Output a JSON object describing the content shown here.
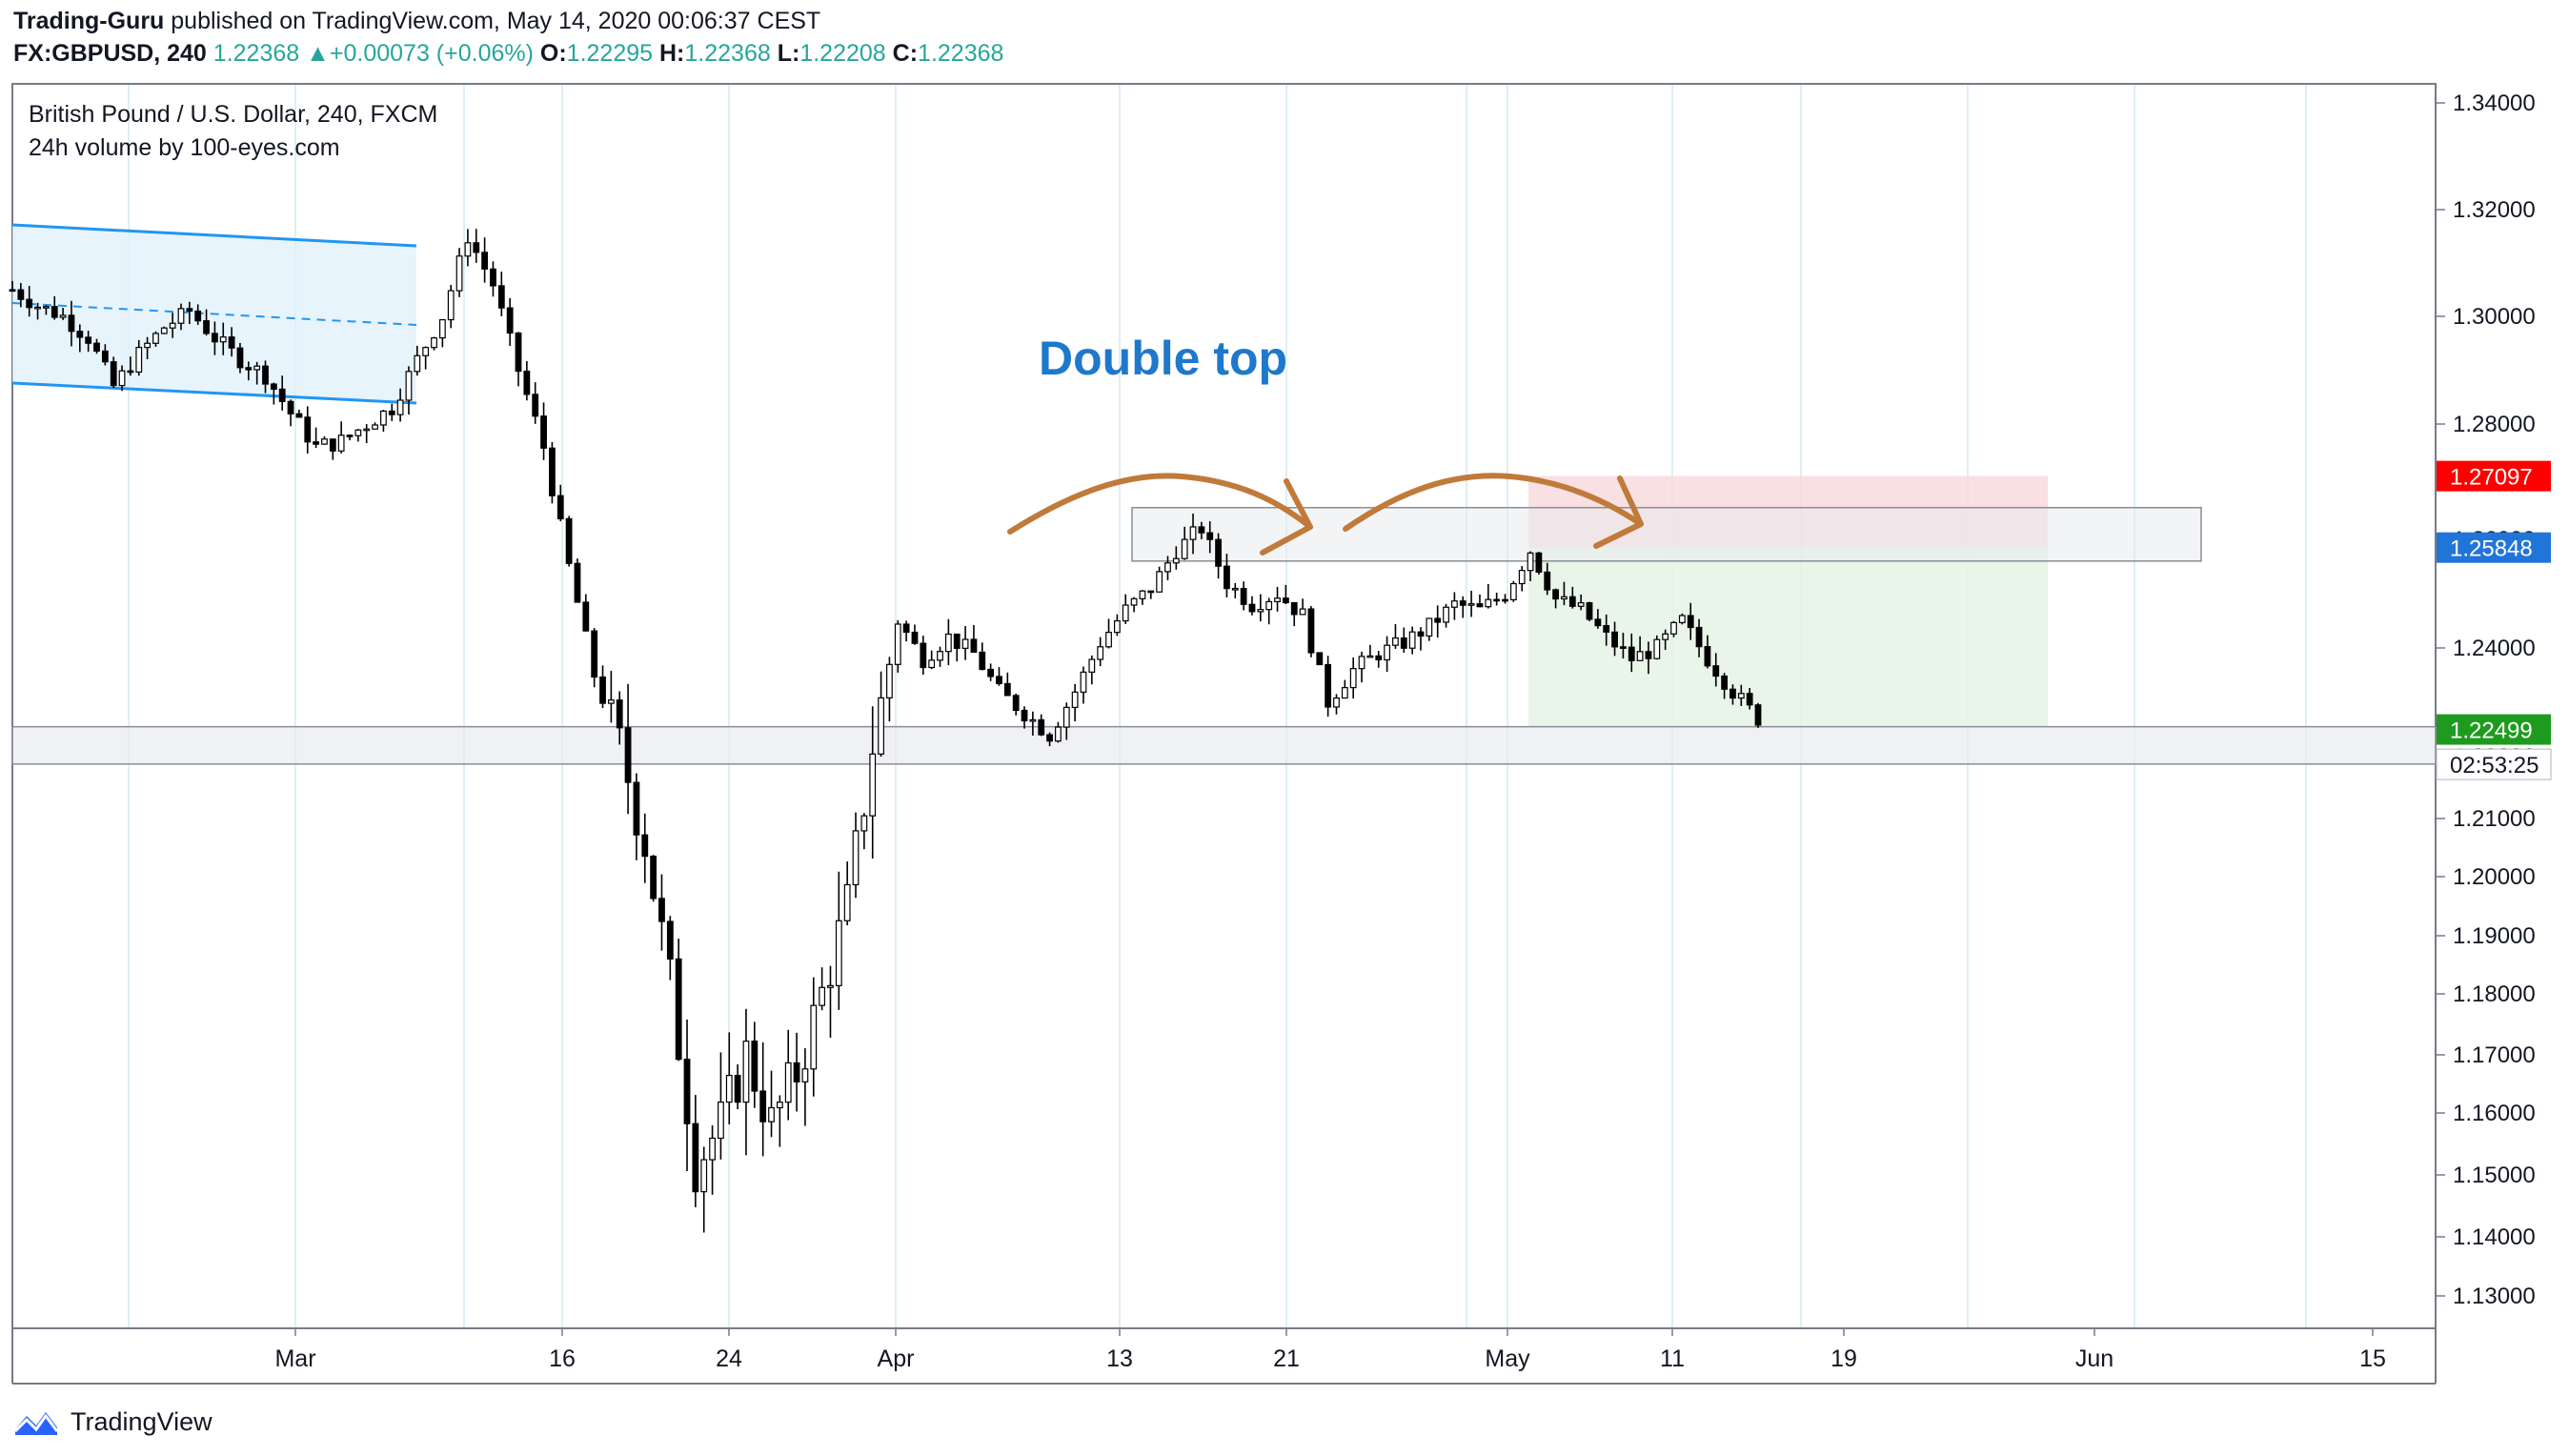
{
  "header": {
    "author": "Trading-Guru",
    "published_text": " published on TradingView.com, May 14, 2020 00:06:37 CEST",
    "symbol": "FX:GBPUSD, 240",
    "last": "1.22368",
    "change_arrow": "▲",
    "change": "+0.00073 (+0.06%)",
    "open_label": "O:",
    "open": "1.22295",
    "high_label": "H:",
    "high": "1.22368",
    "low_label": "L:",
    "low": "1.22208",
    "close_label": "C:",
    "close": "1.22368"
  },
  "legend": {
    "title": "British Pound / U.S. Dollar, 240, FXCM",
    "indicator": "24h volume by 100-eyes.com"
  },
  "annotation": {
    "text": "Double top",
    "color": "#1e78cc"
  },
  "price_labels": [
    {
      "value": "1.27097",
      "price": 1.27097,
      "bg": "#ff0000",
      "fg": "#ffffff"
    },
    {
      "value": "1.25848",
      "price": 1.25848,
      "bg": "#2175d9",
      "fg": "#ffffff"
    },
    {
      "value": "1.22499",
      "price": 1.22499,
      "bg": "#1e9b1e",
      "fg": "#ffffff"
    },
    {
      "value": "02:53:25",
      "price": 1.21875,
      "bg": "#ffffff",
      "fg": "#131722"
    }
  ],
  "branding": {
    "name": "TradingView",
    "icon": "tradingview-logo-icon"
  },
  "chart_data": {
    "type": "candlestick",
    "title": "British Pound / U.S. Dollar, 240, FXCM",
    "ylim": [
      1.125,
      1.345
    ],
    "y_ticks": [
      "1.34000",
      "1.32000",
      "1.30000",
      "1.28000",
      "1.26000",
      "1.24000",
      "1.22000",
      "1.21000",
      "1.20000",
      "1.19000",
      "1.18000",
      "1.17000",
      "1.16000",
      "1.15000",
      "1.14000",
      "1.13000"
    ],
    "y_tick_values": [
      1.34,
      1.32,
      1.3,
      1.28,
      1.26,
      1.24,
      1.22,
      1.21,
      1.2,
      1.19,
      1.18,
      1.17,
      1.16,
      1.15,
      1.14,
      1.13
    ],
    "x_ticks": [
      "Mar",
      "16",
      "24",
      "Apr",
      "13",
      "21",
      "May",
      "11",
      "19",
      "Jun",
      "15"
    ],
    "price_path": [
      [
        0,
        1.305
      ],
      [
        3,
        1.302
      ],
      [
        6,
        1.3
      ],
      [
        9,
        1.296
      ],
      [
        12,
        1.287
      ],
      [
        15,
        1.293
      ],
      [
        18,
        1.298
      ],
      [
        21,
        1.301
      ],
      [
        24,
        1.296
      ],
      [
        27,
        1.292
      ],
      [
        30,
        1.289
      ],
      [
        33,
        1.282
      ],
      [
        36,
        1.276
      ],
      [
        39,
        1.277
      ],
      [
        42,
        1.28
      ],
      [
        45,
        1.283
      ],
      [
        48,
        1.292
      ],
      [
        51,
        1.3
      ],
      [
        54,
        1.315
      ],
      [
        57,
        1.306
      ],
      [
        60,
        1.29
      ],
      [
        63,
        1.276
      ],
      [
        66,
        1.255
      ],
      [
        69,
        1.235
      ],
      [
        72,
        1.222
      ],
      [
        75,
        1.206
      ],
      [
        78,
        1.182
      ],
      [
        81,
        1.152
      ],
      [
        84,
        1.158
      ],
      [
        87,
        1.17
      ],
      [
        90,
        1.158
      ],
      [
        93,
        1.167
      ],
      [
        96,
        1.18
      ],
      [
        99,
        1.195
      ],
      [
        102,
        1.222
      ],
      [
        105,
        1.245
      ],
      [
        108,
        1.238
      ],
      [
        111,
        1.242
      ],
      [
        114,
        1.239
      ],
      [
        117,
        1.232
      ],
      [
        120,
        1.228
      ],
      [
        123,
        1.224
      ],
      [
        126,
        1.232
      ],
      [
        129,
        1.241
      ],
      [
        132,
        1.247
      ],
      [
        135,
        1.251
      ],
      [
        138,
        1.258
      ],
      [
        141,
        1.262
      ],
      [
        144,
        1.252
      ],
      [
        147,
        1.248
      ],
      [
        150,
        1.25
      ],
      [
        153,
        1.246
      ],
      [
        156,
        1.23
      ],
      [
        159,
        1.236
      ],
      [
        162,
        1.239
      ],
      [
        165,
        1.241
      ],
      [
        168,
        1.244
      ],
      [
        171,
        1.248
      ],
      [
        174,
        1.247
      ],
      [
        177,
        1.25
      ],
      [
        180,
        1.258
      ],
      [
        183,
        1.249
      ],
      [
        186,
        1.247
      ],
      [
        189,
        1.242
      ],
      [
        192,
        1.238
      ],
      [
        195,
        1.24
      ],
      [
        198,
        1.245
      ],
      [
        201,
        1.238
      ],
      [
        204,
        1.232
      ],
      [
        207,
        1.227
      ]
    ],
    "x_start_date": "2020-02-20",
    "x_end_date": "2020-05-14",
    "channel": {
      "color": "#2196f3"
    },
    "resistance_zone": {
      "from": 1.256,
      "to": 1.2655
    },
    "support_zone": {
      "from": 1.2188,
      "to": 1.2255
    },
    "risk_zone": {
      "from": 1.2585,
      "to": 1.271,
      "color": "#f8d8dc"
    },
    "reward_zone": {
      "from": 1.2255,
      "to": 1.2585,
      "color": "#e4f3e4"
    }
  }
}
